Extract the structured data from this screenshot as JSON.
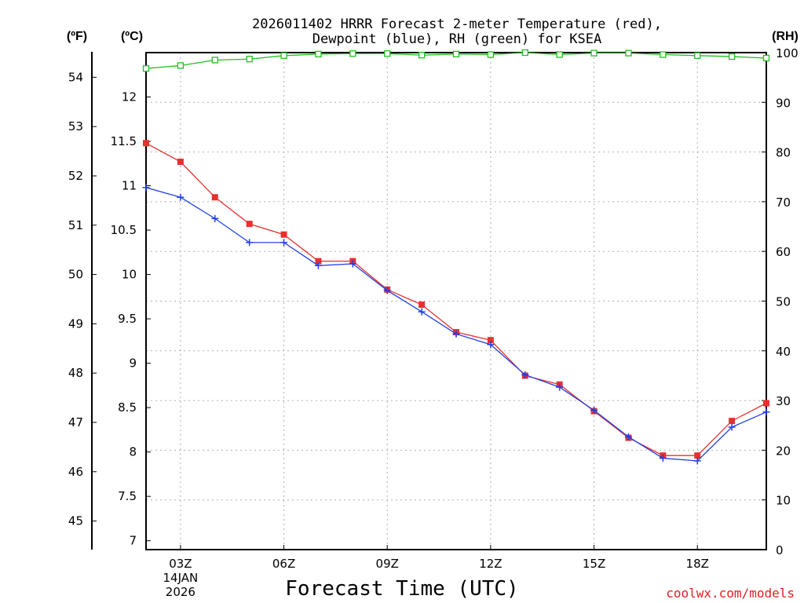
{
  "chart_data": {
    "type": "line",
    "title_line1": "2026011402 HRRR Forecast 2-meter Temperature (red),",
    "title_line2": "Dewpoint (blue), RH (green) for KSEA",
    "xlabel": "Forecast Time (UTC)",
    "credit": "coolwx.com/models",
    "unit_f": "(ºF)",
    "unit_c": "(ºC)",
    "unit_rh": "(RH)",
    "x_hours": [
      2,
      3,
      4,
      5,
      6,
      7,
      8,
      9,
      10,
      11,
      12,
      13,
      14,
      15,
      16,
      17,
      18,
      19,
      20
    ],
    "xlim": [
      2,
      20
    ],
    "x_ticks": [
      {
        "hour": 3,
        "label": "03Z",
        "date_line1": "14JAN",
        "date_line2": "2026"
      },
      {
        "hour": 6,
        "label": "06Z"
      },
      {
        "hour": 9,
        "label": "09Z"
      },
      {
        "hour": 12,
        "label": "12Z"
      },
      {
        "hour": 15,
        "label": "15Z"
      },
      {
        "hour": 18,
        "label": "18Z"
      }
    ],
    "celsius_axis": {
      "ylim": [
        6.9,
        12.5
      ],
      "ticks": [
        "7",
        "7.5",
        "8",
        "8.5",
        "9",
        "9.5",
        "10",
        "10.5",
        "11",
        "11.5",
        "12"
      ]
    },
    "fahrenheit_axis": {
      "ticks": [
        "45",
        "46",
        "47",
        "48",
        "49",
        "50",
        "51",
        "52",
        "53",
        "54"
      ]
    },
    "rh_axis": {
      "ylim": [
        0,
        100
      ],
      "ticks": [
        "0",
        "10",
        "20",
        "30",
        "40",
        "50",
        "60",
        "70",
        "80",
        "90",
        "100"
      ]
    },
    "series": [
      {
        "name": "Temperature",
        "axis": "celsius",
        "color": "#e83030",
        "marker": "square",
        "values": [
          11.48,
          11.27,
          10.87,
          10.57,
          10.45,
          10.15,
          10.15,
          9.83,
          9.66,
          9.35,
          9.26,
          8.86,
          8.76,
          8.46,
          8.16,
          7.96,
          7.96,
          8.35,
          8.55
        ]
      },
      {
        "name": "Dewpoint",
        "axis": "celsius",
        "color": "#2040e8",
        "marker": "plus",
        "values": [
          10.98,
          10.87,
          10.63,
          10.36,
          10.36,
          10.1,
          10.12,
          9.82,
          9.58,
          9.33,
          9.21,
          8.87,
          8.73,
          8.47,
          8.17,
          7.93,
          7.9,
          8.28,
          8.45
        ]
      },
      {
        "name": "RH",
        "axis": "rh",
        "color": "#20c020",
        "marker": "open-square",
        "values": [
          96.8,
          97.4,
          98.5,
          98.7,
          99.4,
          99.7,
          99.8,
          99.8,
          99.5,
          99.7,
          99.6,
          100,
          99.6,
          99.9,
          99.9,
          99.6,
          99.4,
          99.2,
          98.9
        ]
      }
    ]
  }
}
